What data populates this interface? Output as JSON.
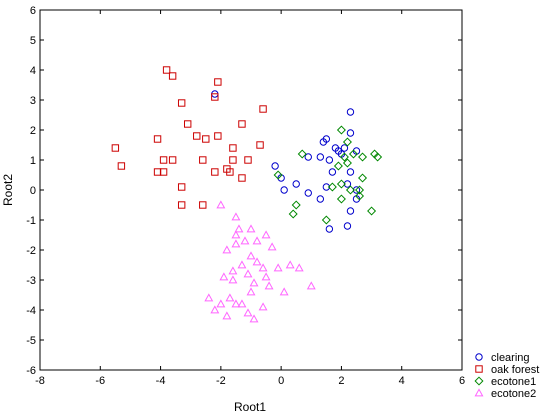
{
  "chart_data": {
    "type": "scatter",
    "title": "",
    "xlabel": "Root1",
    "ylabel": "Root2",
    "xlim": [
      -8,
      6
    ],
    "ylim": [
      -6,
      6
    ],
    "xticks": [
      "-8",
      "-6",
      "-4",
      "-2",
      "0",
      "2",
      "4",
      "6"
    ],
    "yticks": [
      "-6",
      "-5",
      "-4",
      "-3",
      "-2",
      "-1",
      "0",
      "1",
      "2",
      "3",
      "4",
      "5",
      "6"
    ],
    "grid": false,
    "legend_position": "bottom-right-outside",
    "series": [
      {
        "name": "clearing",
        "marker": "circle",
        "color": "#0000cc",
        "points": [
          [
            -2.2,
            3.2
          ],
          [
            0.9,
            1.1
          ],
          [
            1.5,
            1.7
          ],
          [
            1.4,
            1.6
          ],
          [
            1.8,
            1.4
          ],
          [
            2.0,
            1.2
          ],
          [
            2.3,
            2.6
          ],
          [
            2.3,
            1.9
          ],
          [
            2.1,
            1.4
          ],
          [
            2.5,
            1.3
          ],
          [
            1.3,
            1.1
          ],
          [
            1.6,
            1.0
          ],
          [
            2.3,
            0.6
          ],
          [
            2.2,
            0.2
          ],
          [
            2.5,
            0.0
          ],
          [
            1.7,
            0.6
          ],
          [
            -0.2,
            0.8
          ],
          [
            0.0,
            0.4
          ],
          [
            0.1,
            0.0
          ],
          [
            0.5,
            0.2
          ],
          [
            0.9,
            -0.1
          ],
          [
            1.3,
            -0.3
          ],
          [
            1.5,
            0.1
          ],
          [
            2.3,
            -0.7
          ],
          [
            2.2,
            -1.2
          ],
          [
            1.6,
            -1.3
          ],
          [
            2.5,
            -0.3
          ],
          [
            1.9,
            1.3
          ]
        ]
      },
      {
        "name": "oak forest",
        "marker": "square",
        "color": "#cc0000",
        "points": [
          [
            -3.8,
            4.0
          ],
          [
            -3.6,
            3.8
          ],
          [
            -2.1,
            3.6
          ],
          [
            -2.2,
            3.1
          ],
          [
            -3.3,
            2.9
          ],
          [
            -0.6,
            2.7
          ],
          [
            -3.1,
            2.2
          ],
          [
            -1.3,
            2.2
          ],
          [
            -2.1,
            1.8
          ],
          [
            -2.8,
            1.8
          ],
          [
            -2.5,
            1.7
          ],
          [
            -4.1,
            1.7
          ],
          [
            -1.6,
            1.4
          ],
          [
            -0.7,
            1.5
          ],
          [
            -5.5,
            1.4
          ],
          [
            -3.6,
            1.0
          ],
          [
            -3.9,
            1.0
          ],
          [
            -2.6,
            1.0
          ],
          [
            -1.6,
            1.0
          ],
          [
            -1.1,
            1.0
          ],
          [
            -1.8,
            0.7
          ],
          [
            -1.7,
            0.6
          ],
          [
            -5.3,
            0.8
          ],
          [
            -4.1,
            0.6
          ],
          [
            -3.9,
            0.6
          ],
          [
            -2.2,
            0.6
          ],
          [
            -1.3,
            0.4
          ],
          [
            -3.3,
            0.1
          ],
          [
            -3.3,
            -0.5
          ],
          [
            -2.6,
            -0.5
          ]
        ]
      },
      {
        "name": "ecotone1",
        "marker": "diamond",
        "color": "#008800",
        "points": [
          [
            2.0,
            2.0
          ],
          [
            2.2,
            1.6
          ],
          [
            2.1,
            1.1
          ],
          [
            2.4,
            1.2
          ],
          [
            2.7,
            1.1
          ],
          [
            3.1,
            1.2
          ],
          [
            3.2,
            1.1
          ],
          [
            1.9,
            0.8
          ],
          [
            2.2,
            0.9
          ],
          [
            2.7,
            0.4
          ],
          [
            2.0,
            0.2
          ],
          [
            2.3,
            0.0
          ],
          [
            2.6,
            0.0
          ],
          [
            2.6,
            -0.2
          ],
          [
            2.0,
            -0.3
          ],
          [
            3.0,
            -0.7
          ],
          [
            1.5,
            -1.0
          ],
          [
            0.7,
            1.2
          ],
          [
            -0.1,
            0.5
          ],
          [
            0.5,
            -0.5
          ],
          [
            0.4,
            -0.8
          ],
          [
            1.7,
            0.1
          ]
        ]
      },
      {
        "name": "ecotone2",
        "marker": "triangle",
        "color": "#ff66ff",
        "points": [
          [
            -2.0,
            -0.5
          ],
          [
            -1.5,
            -0.9
          ],
          [
            -1.4,
            -1.3
          ],
          [
            -1.5,
            -1.5
          ],
          [
            -1.0,
            -1.3
          ],
          [
            -0.5,
            -1.5
          ],
          [
            -1.5,
            -1.8
          ],
          [
            -1.8,
            -2.0
          ],
          [
            -1.2,
            -1.7
          ],
          [
            -0.8,
            -1.7
          ],
          [
            -0.3,
            -1.9
          ],
          [
            -1.0,
            -2.2
          ],
          [
            -1.3,
            -2.5
          ],
          [
            -0.8,
            -2.4
          ],
          [
            -0.6,
            -2.6
          ],
          [
            -0.1,
            -2.6
          ],
          [
            -1.6,
            -2.7
          ],
          [
            -1.9,
            -2.9
          ],
          [
            -1.1,
            -2.8
          ],
          [
            -0.5,
            -2.9
          ],
          [
            0.3,
            -2.5
          ],
          [
            0.6,
            -2.6
          ],
          [
            -1.6,
            -3.0
          ],
          [
            -0.9,
            -3.1
          ],
          [
            -0.4,
            -3.2
          ],
          [
            1.0,
            -3.2
          ],
          [
            -1.7,
            -3.6
          ],
          [
            -1.0,
            -3.4
          ],
          [
            0.1,
            -3.4
          ],
          [
            -2.4,
            -3.6
          ],
          [
            -2.0,
            -3.8
          ],
          [
            -1.5,
            -3.8
          ],
          [
            -1.3,
            -3.8
          ],
          [
            -2.2,
            -4.0
          ],
          [
            -1.8,
            -4.2
          ],
          [
            -1.1,
            -4.1
          ],
          [
            -0.6,
            -3.9
          ],
          [
            -0.9,
            -4.3
          ]
        ]
      }
    ]
  }
}
